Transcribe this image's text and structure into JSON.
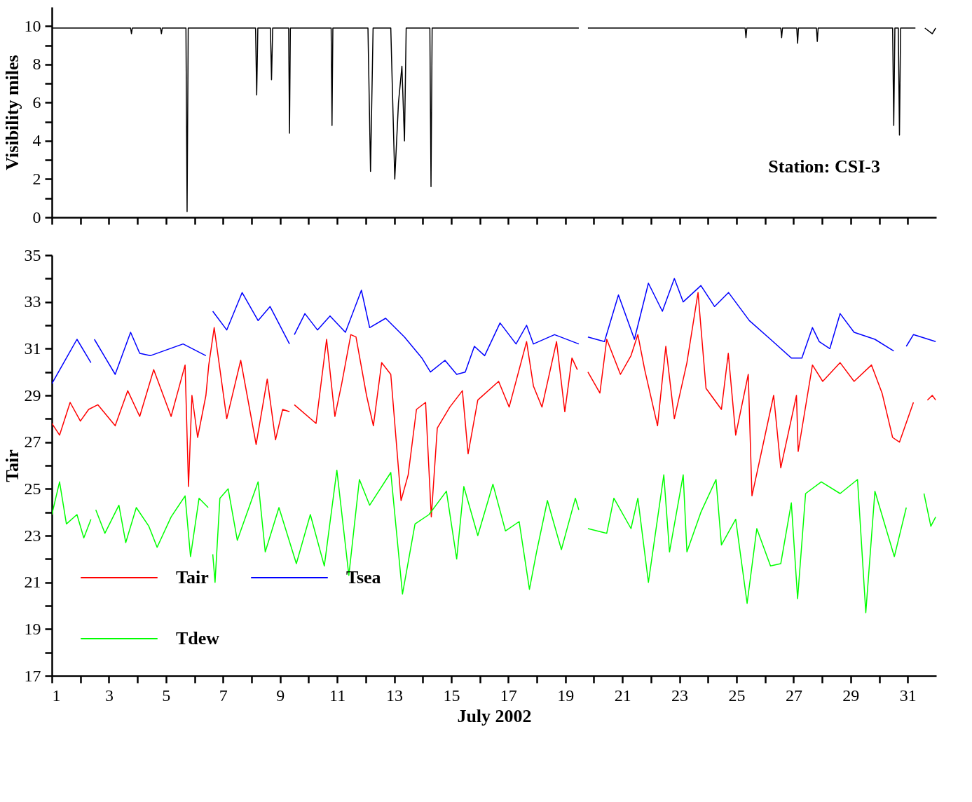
{
  "chart_data": [
    {
      "type": "line",
      "ylabel": "Visibility miles",
      "color": "#000000",
      "tick_labels": "y",
      "grid": false,
      "xlim": [
        1,
        32
      ],
      "xticks": [
        1,
        {
          "value": 2,
          "label": null
        },
        3,
        {
          "value": 4,
          "label": null
        },
        5,
        {
          "value": 6,
          "label": null
        },
        7,
        {
          "value": 8,
          "label": null
        },
        9,
        {
          "value": 10,
          "label": null
        },
        11,
        {
          "value": 12,
          "label": null
        },
        13,
        {
          "value": 14,
          "label": null
        },
        15,
        {
          "value": 16,
          "label": null
        },
        17,
        {
          "value": 18,
          "label": null
        },
        19,
        {
          "value": 20,
          "label": null
        },
        21,
        {
          "value": 22,
          "label": null
        },
        23,
        {
          "value": 24,
          "label": null
        },
        25,
        {
          "value": 26,
          "label": null
        },
        27,
        {
          "value": 28,
          "label": null
        },
        29,
        {
          "value": 30,
          "label": null
        },
        31
      ],
      "ylim": [
        0,
        11
      ],
      "yticks": [
        0,
        {
          "value": 1,
          "label": null
        },
        2,
        {
          "value": 3,
          "label": null
        },
        4,
        {
          "value": 5,
          "label": null
        },
        6,
        {
          "value": 7,
          "label": null
        },
        8,
        {
          "value": 9,
          "label": null
        },
        10
      ],
      "x": [
        1,
        3.76,
        3.79,
        3.82,
        4.81,
        4.84,
        4.87,
        5.7,
        5.74,
        5.78,
        8.14,
        8.18,
        8.22,
        8.66,
        8.7,
        8.74,
        9.3,
        9.33,
        9.36,
        10.79,
        10.82,
        10.85,
        12.08,
        12.17,
        12.26,
        12.88,
        13.02,
        13.15,
        13.27,
        13.36,
        13.42,
        14.25,
        14.29,
        14.33,
        19.47,
        19.6,
        19.79,
        25.3,
        25.33,
        25.36,
        26.55,
        26.58,
        26.61,
        27.11,
        27.14,
        27.17,
        27.8,
        27.83,
        27.86,
        30.47,
        30.51,
        30.55,
        30.67,
        30.71,
        30.75,
        31.27,
        31.4,
        31.6,
        31.86,
        31.98
      ],
      "values": [
        9.9,
        9.9,
        9.6,
        9.9,
        9.9,
        9.6,
        9.9,
        9.9,
        0.3,
        9.9,
        9.9,
        6.4,
        9.9,
        9.9,
        7.2,
        9.9,
        9.9,
        4.4,
        9.9,
        9.9,
        4.8,
        9.9,
        9.9,
        2.4,
        9.9,
        9.9,
        2.0,
        6.0,
        7.9,
        4.0,
        9.9,
        9.9,
        1.6,
        9.9,
        9.9,
        null,
        9.9,
        9.9,
        9.4,
        9.9,
        9.9,
        9.4,
        9.9,
        9.9,
        9.1,
        9.9,
        9.9,
        9.2,
        9.9,
        9.9,
        4.8,
        9.9,
        9.9,
        4.3,
        9.9,
        9.9,
        null,
        9.9,
        9.6,
        9.9
      ],
      "annotations": [
        "Station:  CSI-3"
      ]
    },
    {
      "type": "line",
      "xlabel": "July 2002",
      "ylabel": "Tair",
      "legend": "bottom left",
      "grid": false,
      "xlim": [
        1,
        32
      ],
      "xticks": [
        1,
        {
          "value": 2,
          "label": null
        },
        3,
        {
          "value": 4,
          "label": null
        },
        5,
        {
          "value": 6,
          "label": null
        },
        7,
        {
          "value": 8,
          "label": null
        },
        9,
        {
          "value": 10,
          "label": null
        },
        11,
        {
          "value": 12,
          "label": null
        },
        13,
        {
          "value": 14,
          "label": null
        },
        15,
        {
          "value": 16,
          "label": null
        },
        17,
        {
          "value": 18,
          "label": null
        },
        19,
        {
          "value": 20,
          "label": null
        },
        21,
        {
          "value": 22,
          "label": null
        },
        23,
        {
          "value": 24,
          "label": null
        },
        25,
        {
          "value": 26,
          "label": null
        },
        27,
        {
          "value": 28,
          "label": null
        },
        29,
        {
          "value": 30,
          "label": null
        },
        31
      ],
      "ylim": [
        17,
        35
      ],
      "yticks": [
        17,
        {
          "value": 18,
          "label": null
        },
        19,
        {
          "value": 20,
          "label": null
        },
        21,
        {
          "value": 22,
          "label": null
        },
        23,
        {
          "value": 24,
          "label": null
        },
        25,
        {
          "value": 26,
          "label": null
        },
        27,
        {
          "value": 28,
          "label": null
        },
        29,
        {
          "value": 30,
          "label": null
        },
        31,
        {
          "value": 32,
          "label": null
        },
        33,
        {
          "value": 34,
          "label": null
        },
        35
      ],
      "series": [
        {
          "name": "Tair",
          "color": "#ff0000",
          "x": [
            1,
            1.27,
            1.64,
            2.0,
            2.29,
            2.61,
            3.22,
            3.66,
            4.08,
            4.57,
            5.18,
            5.67,
            5.79,
            5.91,
            6.11,
            6.4,
            6.5,
            6.69,
            7.13,
            7.62,
            8.16,
            8.55,
            8.84,
            9.09,
            9.33,
            9.42,
            9.5,
            10.26,
            10.63,
            10.92,
            11.16,
            11.48,
            11.66,
            12.03,
            12.27,
            12.56,
            12.88,
            13.24,
            13.49,
            13.78,
            14.1,
            14.3,
            14.51,
            14.95,
            15.39,
            15.59,
            15.93,
            16.66,
            17.03,
            17.64,
            17.88,
            18.18,
            18.69,
            18.98,
            19.23,
            19.42,
            19.6,
            19.79,
            20.21,
            20.45,
            20.93,
            21.3,
            21.54,
            21.78,
            22.23,
            22.52,
            22.82,
            23.26,
            23.65,
            23.93,
            24.47,
            24.71,
            24.97,
            25.41,
            25.54,
            25.93,
            26.3,
            26.55,
            27.1,
            27.16,
            27.66,
            28.02,
            28.63,
            29.12,
            29.73,
            30.1,
            30.47,
            30.71,
            31.2,
            31.45,
            31.69,
            31.86,
            31.98
          ],
          "values": [
            27.8,
            27.3,
            28.7,
            27.9,
            28.4,
            28.6,
            27.7,
            29.2,
            28.1,
            30.1,
            28.1,
            30.3,
            25.1,
            29.0,
            27.2,
            29.0,
            30.3,
            31.9,
            28.0,
            30.5,
            26.9,
            29.7,
            27.1,
            28.4,
            28.3,
            null,
            28.6,
            27.8,
            31.4,
            28.1,
            29.5,
            31.6,
            31.5,
            29.0,
            27.7,
            30.4,
            29.9,
            24.5,
            25.6,
            28.4,
            28.7,
            23.8,
            27.6,
            28.5,
            29.2,
            26.5,
            28.8,
            29.6,
            28.5,
            31.3,
            29.4,
            28.5,
            31.3,
            28.3,
            30.6,
            30.1,
            null,
            30.0,
            29.1,
            31.4,
            29.9,
            30.7,
            31.6,
            30.1,
            27.7,
            31.1,
            28.0,
            30.4,
            33.4,
            29.3,
            28.4,
            30.8,
            27.3,
            29.9,
            24.7,
            26.9,
            29.0,
            25.9,
            29.0,
            26.6,
            30.3,
            29.6,
            30.4,
            29.6,
            30.3,
            29.1,
            27.2,
            27.0,
            28.7,
            null,
            28.8,
            29.0,
            28.8
          ]
        },
        {
          "name": "Tdew",
          "color": "#00ff00",
          "x": [
            1,
            1.27,
            1.51,
            1.88,
            2.12,
            2.37,
            2.45,
            2.54,
            2.86,
            3.35,
            3.59,
            3.96,
            4.4,
            4.69,
            5.18,
            5.67,
            5.86,
            6.16,
            6.48,
            6.56,
            6.64,
            6.72,
            6.89,
            7.18,
            7.5,
            8.23,
            8.48,
            8.96,
            9.57,
            10.06,
            10.55,
            10.99,
            11.41,
            11.78,
            12.14,
            12.88,
            13.29,
            13.73,
            14.22,
            14.83,
            15.19,
            15.44,
            15.93,
            16.46,
            16.9,
            17.38,
            17.74,
            17.99,
            18.37,
            18.86,
            19.35,
            19.47,
            19.6,
            19.79,
            20.45,
            20.7,
            21.3,
            21.54,
            21.91,
            22.45,
            22.65,
            23.13,
            23.26,
            23.75,
            24.28,
            24.47,
            24.97,
            25.37,
            25.71,
            26.19,
            26.55,
            26.92,
            27.14,
            27.42,
            27.97,
            28.63,
            29.24,
            29.53,
            29.85,
            30.53,
            30.95,
            31.3,
            31.57,
            31.81,
            31.98
          ],
          "values": [
            23.9,
            25.3,
            23.5,
            23.9,
            22.9,
            23.7,
            null,
            24.1,
            23.1,
            24.3,
            22.7,
            24.2,
            23.4,
            22.5,
            23.8,
            24.7,
            22.1,
            24.6,
            24.2,
            null,
            22.2,
            21.0,
            24.6,
            25.0,
            22.8,
            25.3,
            22.3,
            24.2,
            21.8,
            23.9,
            21.7,
            25.8,
            21.3,
            25.4,
            24.3,
            25.7,
            20.5,
            23.5,
            23.9,
            24.9,
            22.0,
            25.1,
            23.0,
            25.2,
            23.2,
            23.6,
            20.7,
            22.3,
            24.5,
            22.4,
            24.6,
            24.1,
            null,
            23.3,
            23.1,
            24.6,
            23.3,
            24.6,
            21.0,
            25.6,
            22.3,
            25.6,
            22.3,
            24.0,
            25.4,
            22.6,
            23.7,
            20.1,
            23.3,
            21.7,
            21.8,
            24.4,
            20.3,
            24.8,
            25.3,
            24.8,
            25.4,
            19.7,
            24.9,
            22.1,
            24.2,
            null,
            24.8,
            23.4,
            23.8
          ]
        },
        {
          "name": "Tsea",
          "color": "#0000ff",
          "x": [
            1,
            1.88,
            2.37,
            2.43,
            2.49,
            3.22,
            3.76,
            4.08,
            4.45,
            5.6,
            6.4,
            6.55,
            6.64,
            7.13,
            7.67,
            8.23,
            8.65,
            9.33,
            9.42,
            9.5,
            9.87,
            10.31,
            10.75,
            11.29,
            11.85,
            12.14,
            12.7,
            13.36,
            13.97,
            14.27,
            14.78,
            15.19,
            15.49,
            15.81,
            16.17,
            16.71,
            17.27,
            17.64,
            17.88,
            18.62,
            19.47,
            19.6,
            19.79,
            20.37,
            20.86,
            21.42,
            21.91,
            22.4,
            22.82,
            23.13,
            23.75,
            24.23,
            24.72,
            25.45,
            26.19,
            26.92,
            27.29,
            27.66,
            27.9,
            28.27,
            28.63,
            29.12,
            29.85,
            30.51,
            30.75,
            30.95,
            31.2,
            31.98
          ],
          "values": [
            29.5,
            31.4,
            30.4,
            null,
            31.4,
            29.9,
            31.7,
            30.8,
            30.7,
            31.2,
            30.7,
            null,
            32.6,
            31.8,
            33.4,
            32.2,
            32.8,
            31.2,
            null,
            31.6,
            32.5,
            31.8,
            32.4,
            31.7,
            33.5,
            31.9,
            32.3,
            31.5,
            30.6,
            30.0,
            30.5,
            29.9,
            30.0,
            31.1,
            30.7,
            32.1,
            31.2,
            32.0,
            31.2,
            31.6,
            31.2,
            null,
            31.5,
            31.3,
            33.3,
            31.4,
            33.8,
            32.6,
            34.0,
            33.0,
            33.7,
            32.8,
            33.4,
            32.2,
            31.4,
            30.6,
            30.6,
            31.9,
            31.3,
            31.0,
            32.5,
            31.7,
            31.4,
            30.9,
            null,
            31.1,
            31.6,
            31.3
          ]
        }
      ]
    }
  ]
}
